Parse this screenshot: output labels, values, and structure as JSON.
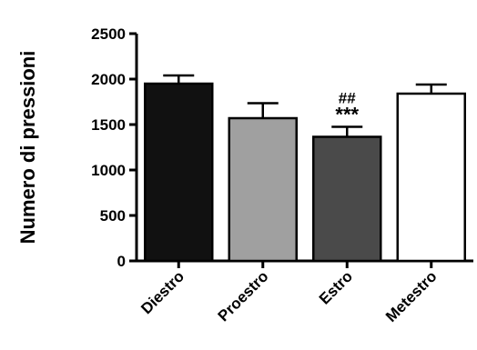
{
  "chart_data": {
    "type": "bar",
    "title": "",
    "xlabel": "",
    "ylabel": "Numero di pressioni",
    "ylim": [
      0,
      2500
    ],
    "yticks": [
      0,
      500,
      1000,
      1500,
      2000,
      2500
    ],
    "grid": false,
    "categories": [
      "Diestro",
      "Proestro",
      "Estro",
      "Metestro"
    ],
    "values": [
      1950,
      1570,
      1365,
      1840
    ],
    "errors": [
      90,
      165,
      110,
      100
    ],
    "colors": [
      "#111111",
      "#a0a0a0",
      "#4a4a4a",
      "#ffffff"
    ],
    "annotations": [
      {
        "category": "Estro",
        "lines": [
          "##",
          "***"
        ]
      }
    ]
  }
}
